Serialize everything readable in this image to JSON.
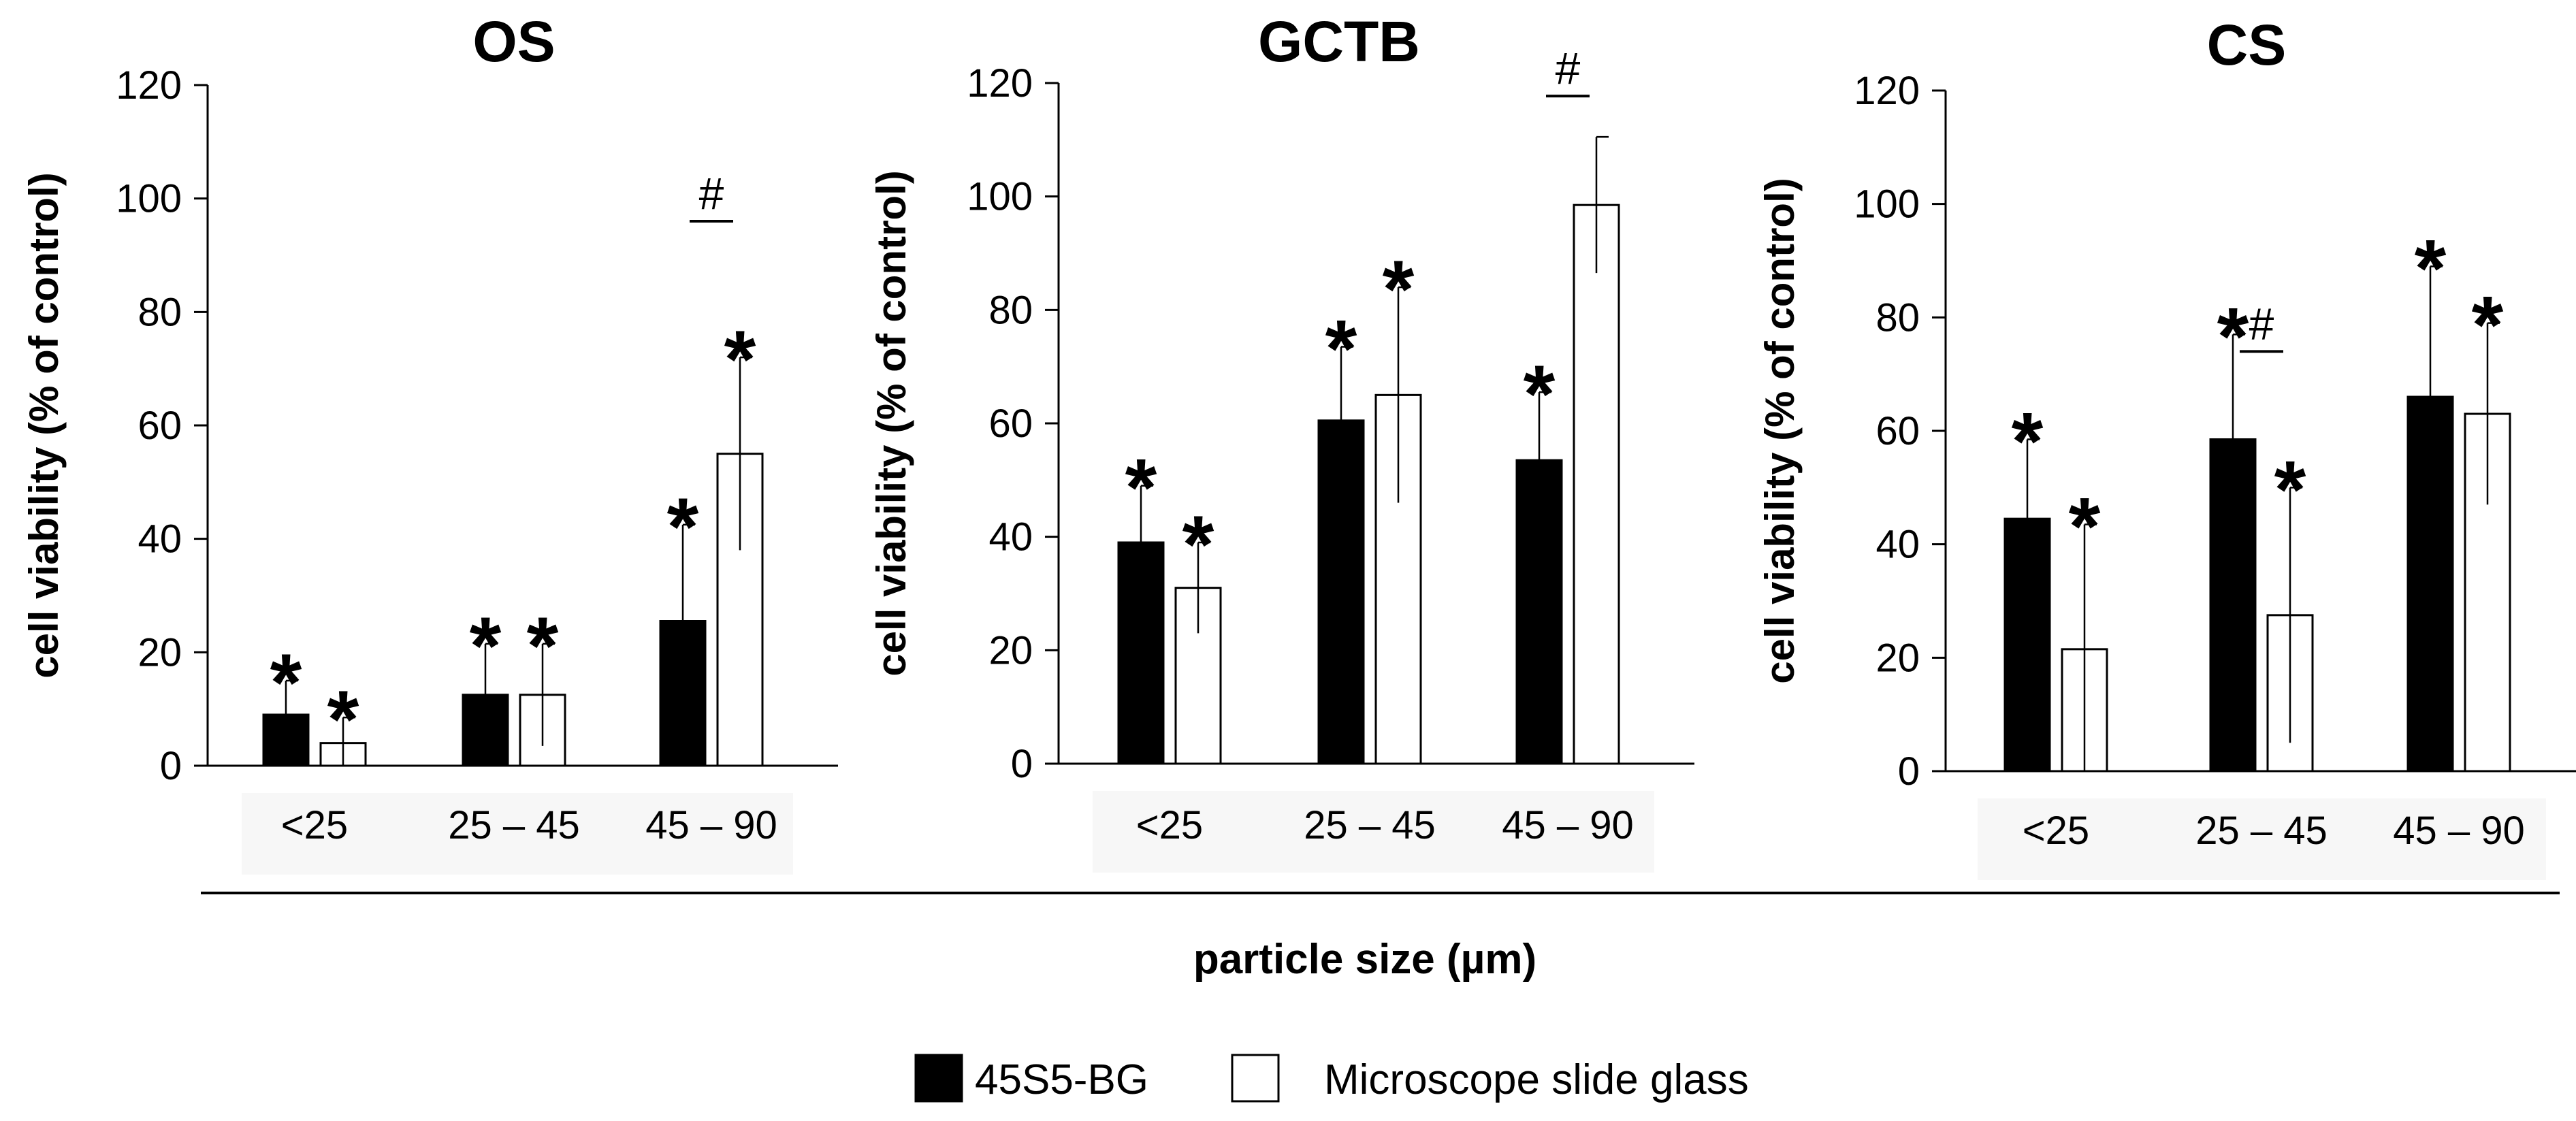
{
  "figure": {
    "xlabel": "particle size (µm)",
    "legend": [
      {
        "label": "45S5-BG",
        "color": "#000000"
      },
      {
        "label": "Microscope slide glass",
        "color": "#ffffff"
      }
    ],
    "legend_position": "bottom-center"
  },
  "chart_data": [
    {
      "type": "bar",
      "title": "OS",
      "ylabel": "cell viability (% of control)",
      "ylim": [
        0,
        120
      ],
      "yticks": [
        "0",
        "20",
        "40",
        "60",
        "80",
        "100",
        "120"
      ],
      "categories": [
        "<25",
        "25 – 45",
        "45 – 90"
      ],
      "series": [
        {
          "name": "45S5-BG",
          "values": [
            9,
            12.5,
            25.5
          ],
          "errors": [
            6,
            9,
            17
          ],
          "stars": [
            "*",
            "*",
            "*"
          ]
        },
        {
          "name": "Microscope slide glass",
          "values": [
            4,
            12.5,
            55
          ],
          "errors": [
            4.5,
            9,
            17
          ],
          "stars": [
            "*",
            "*",
            "*"
          ]
        }
      ],
      "annotations": [
        {
          "category": 2,
          "text": "#"
        }
      ]
    },
    {
      "type": "bar",
      "title": "GCTB",
      "ylabel": "cell viability (% of control)",
      "ylim": [
        0,
        120
      ],
      "yticks": [
        "0",
        "20",
        "40",
        "60",
        "80",
        "100",
        "120"
      ],
      "categories": [
        "<25",
        "25 – 45",
        "45 – 90"
      ],
      "series": [
        {
          "name": "45S5-BG",
          "values": [
            39,
            60.5,
            53.5
          ],
          "errors": [
            10,
            13,
            12
          ],
          "stars": [
            "*",
            "*",
            "*"
          ]
        },
        {
          "name": "Microscope slide glass",
          "values": [
            31,
            65,
            98.5
          ],
          "errors": [
            8,
            19,
            12
          ],
          "stars": [
            "*",
            "*",
            ""
          ]
        }
      ],
      "annotations": [
        {
          "category": 2,
          "text": "#"
        }
      ]
    },
    {
      "type": "bar",
      "title": "CS",
      "ylabel": "cell viability (% of control)",
      "ylim": [
        0,
        120
      ],
      "yticks": [
        "0",
        "20",
        "40",
        "60",
        "80",
        "100",
        "120"
      ],
      "categories": [
        "<25",
        "25 – 45",
        "45 – 90"
      ],
      "series": [
        {
          "name": "45S5-BG",
          "values": [
            44.5,
            58.5,
            66
          ],
          "errors": [
            14,
            18.5,
            23
          ],
          "stars": [
            "*",
            "*",
            "*"
          ]
        },
        {
          "name": "Microscope slide glass",
          "values": [
            21.5,
            27.5,
            63
          ],
          "errors": [
            22,
            22.5,
            16
          ],
          "stars": [
            "*",
            "*",
            "*"
          ]
        }
      ],
      "annotations": [
        {
          "category": 1,
          "text": "#"
        }
      ]
    }
  ]
}
